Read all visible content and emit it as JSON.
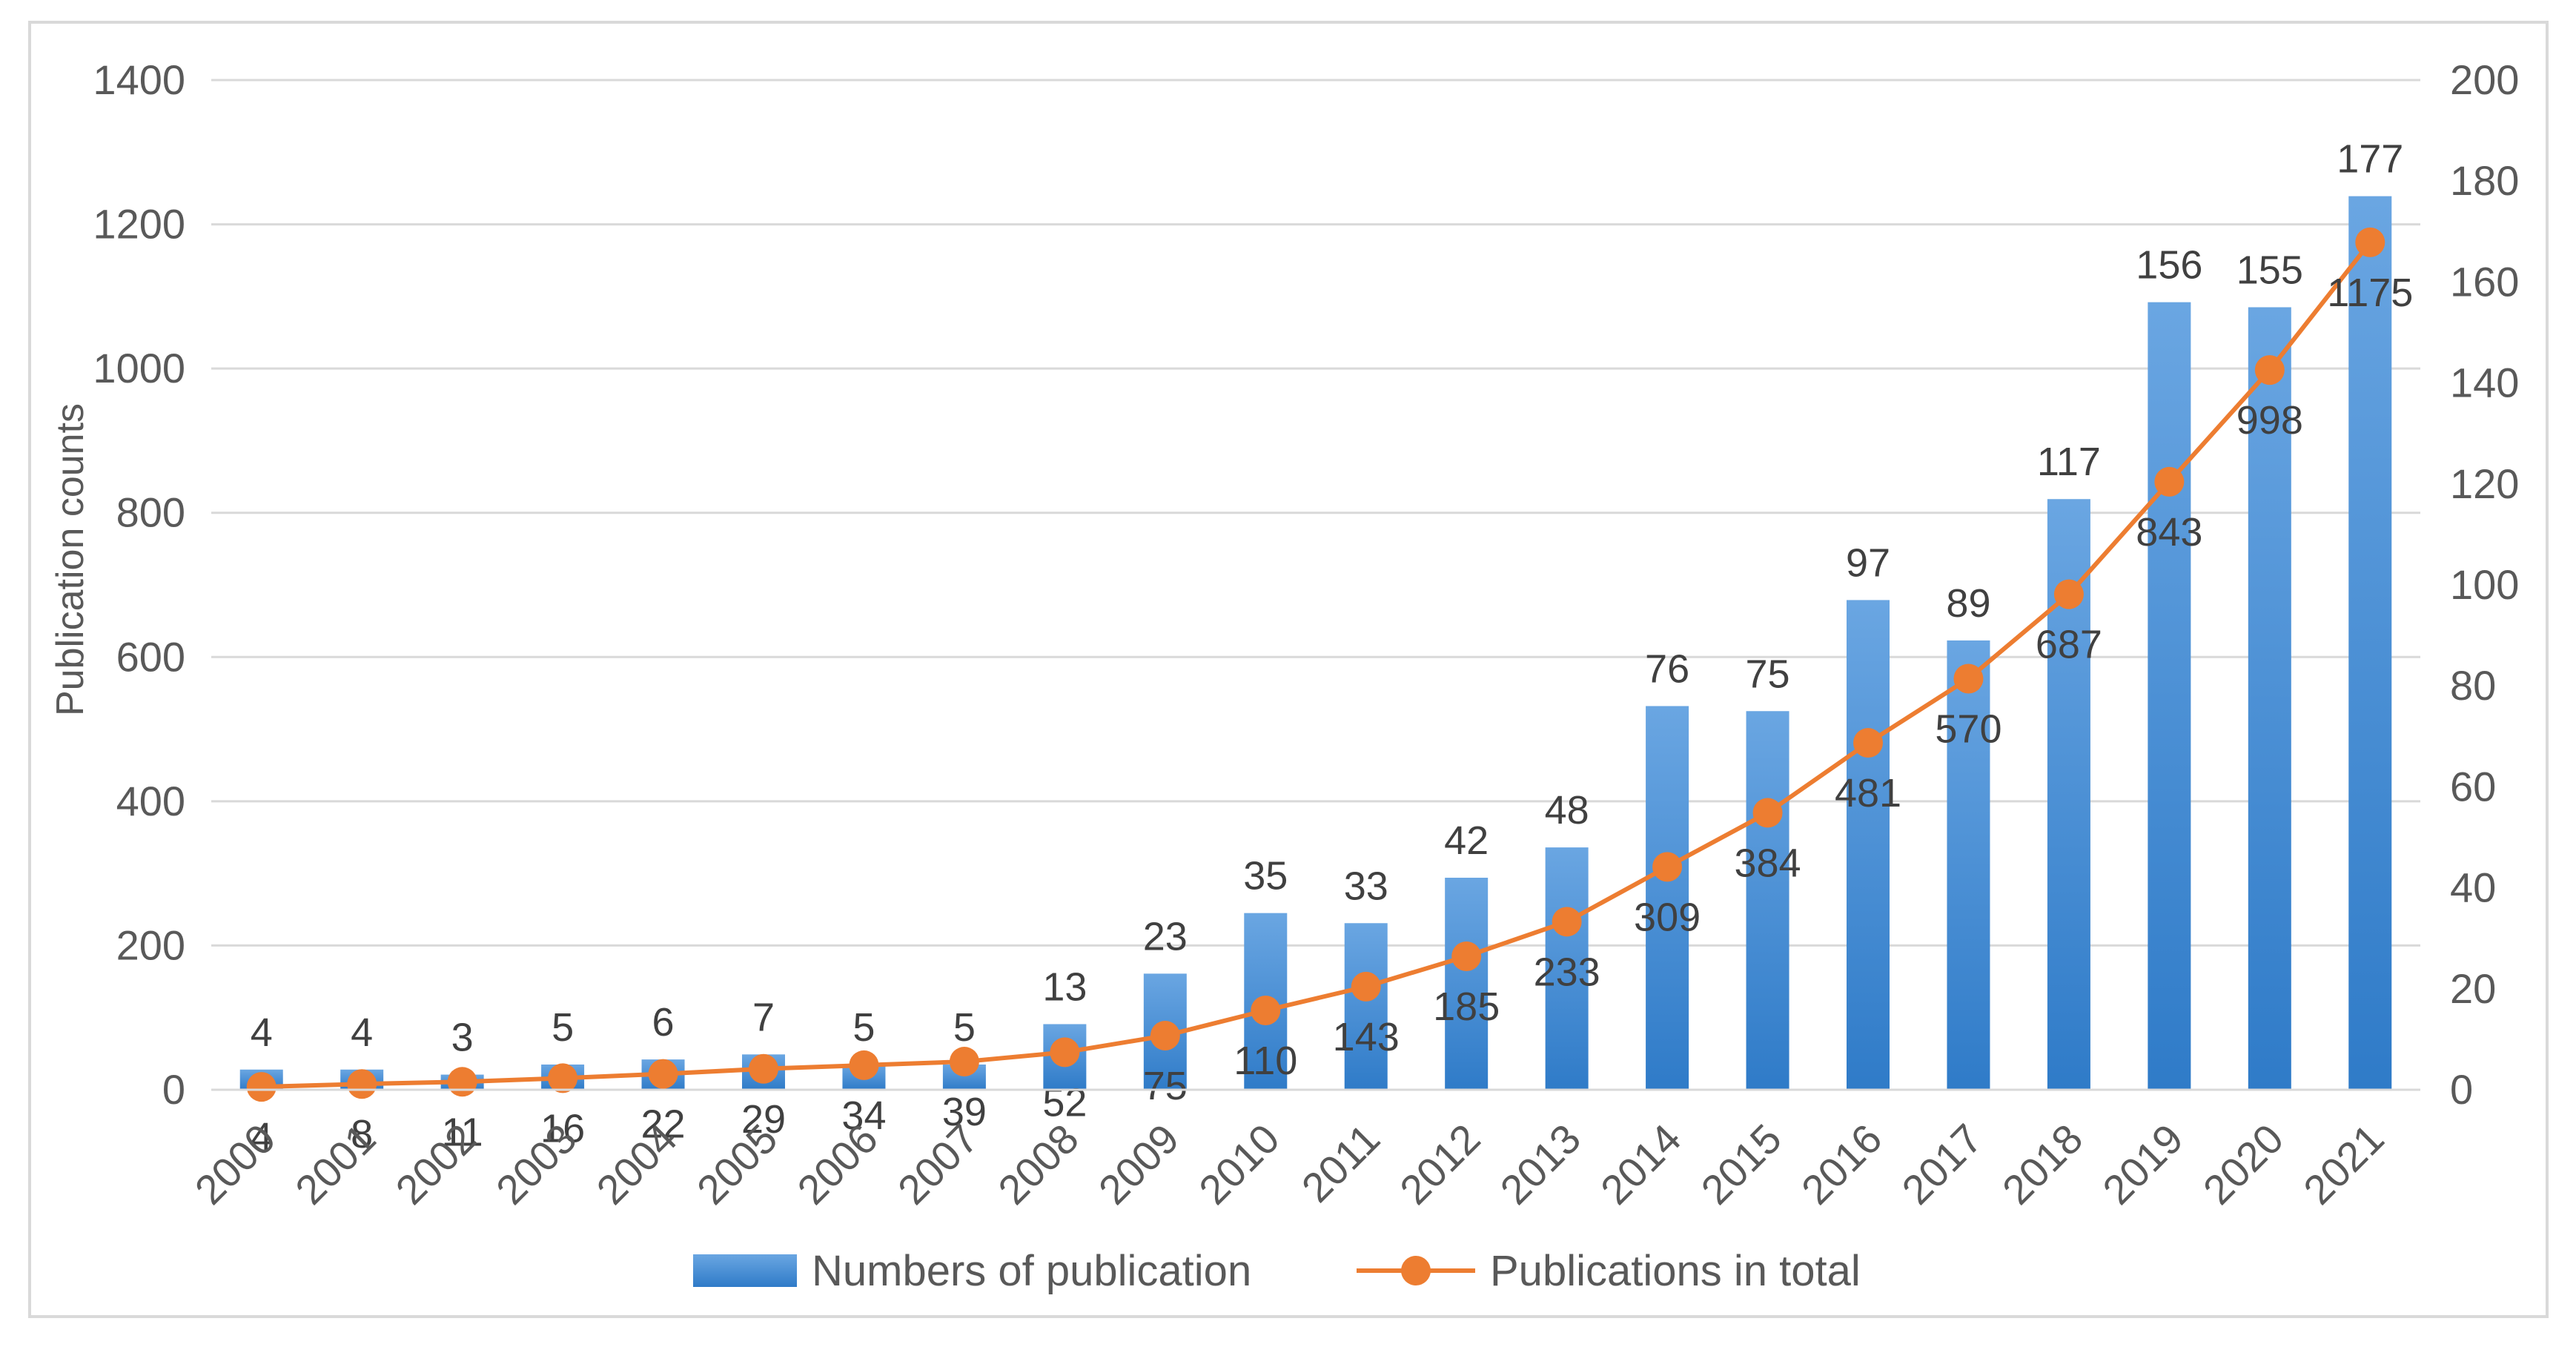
{
  "chart_data": {
    "type": "bar",
    "categories": [
      "2000",
      "2001",
      "2002",
      "2003",
      "2004",
      "2005",
      "2006",
      "2007",
      "2008",
      "2009",
      "2010",
      "2011",
      "2012",
      "2013",
      "2014",
      "2015",
      "2016",
      "2017",
      "2018",
      "2019",
      "2020",
      "2021"
    ],
    "series": [
      {
        "name": "Numbers of publication",
        "type": "bar",
        "axis": "right",
        "color": "#4a8fd6",
        "values": [
          4,
          4,
          3,
          5,
          6,
          7,
          5,
          5,
          13,
          23,
          35,
          33,
          42,
          48,
          76,
          75,
          97,
          89,
          117,
          156,
          155,
          177
        ]
      },
      {
        "name": "Publications in total",
        "type": "line",
        "axis": "left",
        "color": "#ed7d31",
        "values": [
          4,
          8,
          11,
          16,
          22,
          29,
          34,
          39,
          52,
          75,
          110,
          143,
          185,
          233,
          309,
          384,
          481,
          570,
          687,
          843,
          998,
          1175
        ]
      }
    ],
    "ylabel": "Publication counts",
    "ylim_left": [
      0,
      1400
    ],
    "yticks_left": [
      "0",
      "200",
      "400",
      "600",
      "800",
      "1000",
      "1200",
      "1400"
    ],
    "ylim_right": [
      0,
      200
    ],
    "yticks_right": [
      "0",
      "20",
      "40",
      "60",
      "80",
      "100",
      "120",
      "140",
      "160",
      "180",
      "200"
    ],
    "grid": true,
    "legend_position": "bottom"
  }
}
